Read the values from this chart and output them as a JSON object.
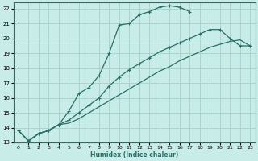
{
  "bg_color": "#c8ece8",
  "grid_color": "#aad4d0",
  "line_color": "#2a6e68",
  "xlabel": "Humidex (Indice chaleur)",
  "xlim": [
    -0.5,
    23.5
  ],
  "ylim": [
    13,
    22.4
  ],
  "xticks": [
    0,
    1,
    2,
    3,
    4,
    5,
    6,
    7,
    8,
    9,
    10,
    11,
    12,
    13,
    14,
    15,
    16,
    17,
    18,
    19,
    20,
    21,
    22,
    23
  ],
  "yticks": [
    13,
    14,
    15,
    16,
    17,
    18,
    19,
    20,
    21,
    22
  ],
  "curve1_x": [
    0,
    1,
    2,
    3,
    4,
    5,
    6,
    7,
    8,
    9,
    10,
    11,
    12,
    13,
    14,
    15,
    16,
    17
  ],
  "curve1_y": [
    13.8,
    13.1,
    13.6,
    13.8,
    14.2,
    15.1,
    16.3,
    16.7,
    17.5,
    19.0,
    20.9,
    21.0,
    21.6,
    21.8,
    22.1,
    22.2,
    22.1,
    21.8
  ],
  "curve2_x": [
    0,
    1,
    2,
    3,
    4,
    5,
    6,
    7,
    8,
    9,
    10,
    11,
    12,
    13,
    14,
    15,
    16,
    17,
    18,
    19,
    20,
    21,
    22,
    23
  ],
  "curve2_y": [
    13.8,
    13.1,
    13.6,
    13.8,
    14.2,
    14.5,
    15.0,
    15.5,
    16.0,
    16.8,
    17.4,
    17.9,
    18.3,
    18.7,
    19.1,
    19.4,
    19.7,
    20.0,
    20.3,
    20.6,
    20.6,
    20.0,
    19.5,
    19.5
  ],
  "curve3_x": [
    0,
    1,
    2,
    3,
    4,
    5,
    6,
    7,
    8,
    9,
    10,
    11,
    12,
    13,
    14,
    15,
    16,
    17,
    18,
    19,
    20,
    21,
    22,
    23
  ],
  "curve3_y": [
    13.8,
    13.1,
    13.6,
    13.8,
    14.2,
    14.3,
    14.6,
    15.0,
    15.4,
    15.8,
    16.2,
    16.6,
    17.0,
    17.4,
    17.8,
    18.1,
    18.5,
    18.8,
    19.1,
    19.4,
    19.6,
    19.8,
    19.9,
    19.5
  ]
}
